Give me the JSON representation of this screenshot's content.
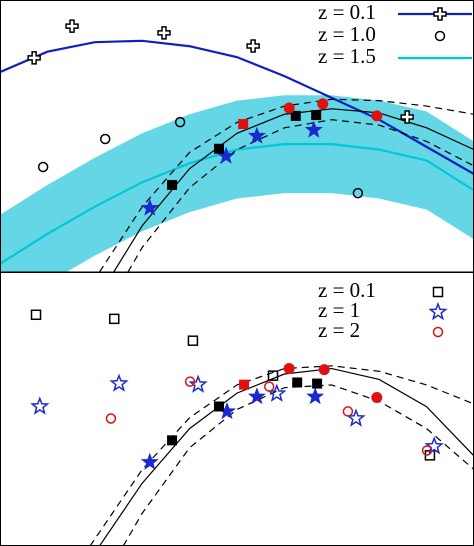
{
  "chart_data": [
    {
      "type": "scatter",
      "xlim": [
        0,
        10
      ],
      "ylim": [
        0,
        10
      ],
      "series": [
        {
          "name": "z = 0.1",
          "marker": "plus",
          "color": "#000000",
          "x": [
            0.72,
            1.52,
            3.46,
            5.34,
            8.59
          ],
          "y": [
            7.87,
            9.04,
            8.79,
            8.31,
            5.7
          ],
          "curve": {
            "color": "#1020c0",
            "dash": "solid",
            "x": [
              0,
              1,
              2,
              3,
              4,
              5,
              6,
              7,
              8,
              9,
              10
            ],
            "y": [
              7.35,
              8.1,
              8.45,
              8.5,
              8.3,
              7.9,
              7.2,
              6.4,
              5.6,
              4.6,
              3.6
            ]
          }
        },
        {
          "name": "z = 1.0",
          "marker": "circle",
          "color": "#000000",
          "x": [
            0.91,
            2.22,
            3.8,
            7.55
          ],
          "y": [
            3.86,
            4.89,
            5.51,
            2.9
          ]
        },
        {
          "name": "z = 1.5",
          "curve": {
            "color": "#00c8d8",
            "dash": "solid",
            "band_color": "#30c8dc",
            "x": [
              0,
              1,
              2,
              3,
              4,
              5,
              6,
              7,
              8,
              9,
              10
            ],
            "y": [
              0.3,
              1.4,
              2.4,
              3.3,
              4.0,
              4.5,
              4.7,
              4.7,
              4.5,
              4.1,
              3.0
            ],
            "low": [
              -1.5,
              -0.4,
              0.6,
              1.5,
              2.2,
              2.7,
              2.9,
              2.9,
              2.7,
              2.3,
              1.2
            ],
            "high": [
              2.1,
              3.2,
              4.2,
              5.1,
              5.8,
              6.3,
              6.5,
              6.5,
              6.3,
              5.9,
              4.8
            ]
          }
        },
        {
          "curve": {
            "color": "#000000",
            "dash": "solid",
            "x": [
              2.4,
              3,
              4,
              5,
              6,
              7,
              8,
              9,
              10
            ],
            "y": [
              0,
              1.7,
              3.8,
              5.1,
              5.8,
              6.0,
              5.85,
              5.3,
              4.5
            ]
          }
        },
        {
          "curve": {
            "color": "#000000",
            "dash": "dashed",
            "x": [
              2.1,
              3,
              4,
              5,
              6,
              7,
              8,
              9,
              10
            ],
            "y": [
              0,
              2.4,
              4.4,
              5.5,
              6.1,
              6.35,
              6.3,
              6.1,
              5.8
            ]
          }
        },
        {
          "curve": {
            "color": "#000000",
            "dash": "dashed",
            "x": [
              2.7,
              3,
              4,
              5,
              6,
              7,
              8,
              9,
              10
            ],
            "y": [
              0,
              0.9,
              3.1,
              4.5,
              5.3,
              5.6,
              5.4,
              4.8,
              3.9
            ]
          }
        },
        {
          "marker": "star-filled",
          "color": "#1a2ad0",
          "x": [
            3.16,
            4.77,
            5.42,
            6.62
          ],
          "y": [
            2.35,
            4.26,
            5.0,
            5.22
          ]
        },
        {
          "marker": "square-filled",
          "color": "#000000",
          "x": [
            4.62,
            3.63,
            6.24,
            6.67
          ],
          "y": [
            4.53,
            3.2,
            5.74,
            5.77
          ]
        },
        {
          "marker": "square-filled",
          "color": "#e01010",
          "x": [
            5.13
          ],
          "y": [
            5.44
          ]
        },
        {
          "marker": "circle-filled",
          "color": "#e01010",
          "x": [
            6.1,
            6.81,
            7.95
          ],
          "y": [
            6.03,
            6.18,
            5.74
          ]
        }
      ]
    },
    {
      "type": "scatter",
      "xlim": [
        0,
        10
      ],
      "ylim": [
        0,
        10
      ],
      "series": [
        {
          "name": "z = 0.1",
          "marker": "square",
          "color": "#000000",
          "x": [
            0.76,
            2.41,
            4.07,
            5.76,
            9.07
          ],
          "y": [
            8.47,
            8.32,
            7.52,
            6.24,
            3.32
          ]
        },
        {
          "name": "z = 1",
          "marker": "star",
          "color": "#1a2ad0",
          "x": [
            0.84,
            2.51,
            4.18,
            5.84,
            7.51,
            9.16
          ],
          "y": [
            5.11,
            5.95,
            5.91,
            5.58,
            4.67,
            3.65
          ]
        },
        {
          "name": "z = 2",
          "marker": "circle",
          "color": "#e01010",
          "x": [
            2.34,
            4.01,
            5.68,
            7.34,
            9.01
          ],
          "y": [
            4.67,
            6.02,
            5.84,
            4.93,
            3.5
          ]
        },
        {
          "curve": {
            "color": "#000000",
            "dash": "solid",
            "x": [
              2.1,
              3,
              4,
              5,
              6,
              7,
              8,
              9,
              10
            ],
            "y": [
              0,
              2.3,
              4.3,
              5.6,
              6.3,
              6.5,
              6.1,
              5.1,
              3.3
            ]
          }
        },
        {
          "curve": {
            "color": "#000000",
            "dash": "dashed",
            "x": [
              1.9,
              3,
              4,
              5,
              6,
              7,
              8,
              9,
              10
            ],
            "y": [
              0,
              2.8,
              4.7,
              5.9,
              6.5,
              6.6,
              6.4,
              5.9,
              5.2
            ]
          }
        },
        {
          "curve": {
            "color": "#000000",
            "dash": "dashed",
            "x": [
              2.6,
              3,
              4,
              5,
              6,
              7,
              8,
              9,
              10
            ],
            "y": [
              0,
              1.2,
              3.6,
              5.0,
              5.8,
              5.9,
              5.3,
              4.3,
              2.8
            ]
          }
        },
        {
          "marker": "star-filled",
          "color": "#1a2ad0",
          "x": [
            3.16,
            4.79,
            5.42,
            6.65
          ],
          "y": [
            3.07,
            4.93,
            5.47,
            5.47
          ]
        },
        {
          "marker": "square-filled",
          "color": "#000000",
          "x": [
            4.62,
            3.63,
            6.27,
            6.69
          ],
          "y": [
            5.11,
            3.87,
            5.99,
            5.95
          ]
        },
        {
          "marker": "square-filled",
          "color": "#e01010",
          "x": [
            5.15
          ],
          "y": [
            5.91
          ]
        },
        {
          "marker": "circle-filled",
          "color": "#e01010",
          "x": [
            6.1,
            6.84,
            7.95
          ],
          "y": [
            6.5,
            6.46,
            5.44
          ]
        }
      ]
    }
  ]
}
